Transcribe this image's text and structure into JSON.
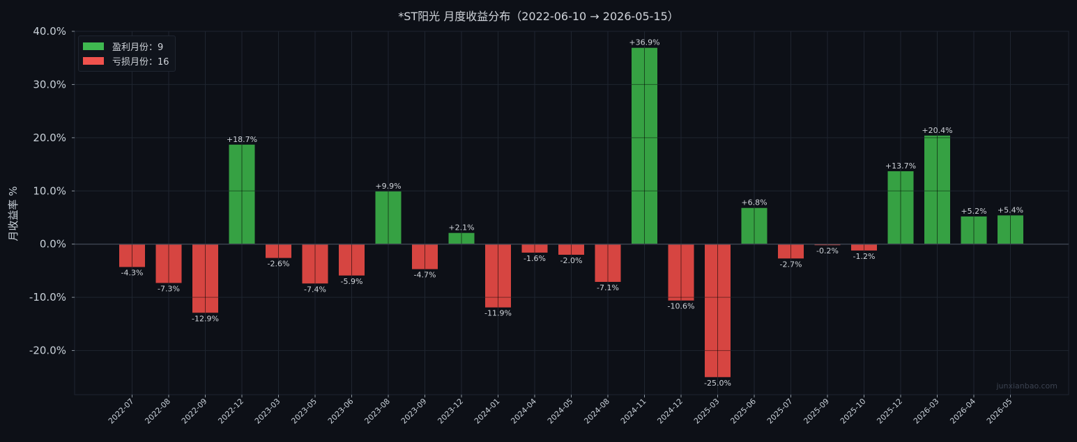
{
  "chart_data": {
    "type": "bar",
    "title": "*ST阳光 月度收益分布（2022-06-10 → 2026-05-15）",
    "ylabel": "月收益率 %",
    "xlabel": "",
    "ylim": [
      -28.3,
      40.0
    ],
    "yticks": [
      -20,
      -10,
      0,
      10,
      20,
      30,
      40
    ],
    "ytick_labels": [
      "-20.0%",
      "-10.0%",
      "0.0%",
      "10.0%",
      "20.0%",
      "30.0%",
      "40.0%"
    ],
    "grid": true,
    "legend_position": "top-left",
    "categories": [
      "2022-07",
      "2022-08",
      "2022-09",
      "2022-12",
      "2023-03",
      "2023-05",
      "2023-06",
      "2023-08",
      "2023-09",
      "2023-12",
      "2024-01",
      "2024-04",
      "2024-05",
      "2024-08",
      "2024-11",
      "2024-12",
      "2025-03",
      "2025-06",
      "2025-07",
      "2025-09",
      "2025-10",
      "2025-12",
      "2026-03",
      "2026-04",
      "2026-05"
    ],
    "values": [
      -4.3,
      -7.3,
      -12.9,
      18.7,
      -2.6,
      -7.4,
      -5.9,
      9.9,
      -4.7,
      2.1,
      -11.9,
      -1.6,
      -2.0,
      -7.1,
      36.9,
      -10.6,
      -25.0,
      6.8,
      -2.7,
      -0.2,
      -1.2,
      13.7,
      20.4,
      5.2,
      5.4
    ],
    "data_labels": [
      "-4.3%",
      "-7.3%",
      "-12.9%",
      "+18.7%",
      "-2.6%",
      "-7.4%",
      "-5.9%",
      "+9.9%",
      "-4.7%",
      "+2.1%",
      "-11.9%",
      "-1.6%",
      "-2.0%",
      "-7.1%",
      "+36.9%",
      "-10.6%",
      "-25.0%",
      "+6.8%",
      "-2.7%",
      "-0.2%",
      "-1.2%",
      "+13.7%",
      "+20.4%",
      "+5.2%",
      "+5.4%"
    ],
    "legend": [
      {
        "label": "盈利月份：9",
        "color": "#3fb950"
      },
      {
        "label": "亏损月份：16",
        "color": "#f0524d"
      }
    ]
  },
  "colors": {
    "background": "#0d1017",
    "grid": "#1f2530",
    "positive_bar": "#36a143",
    "negative_bar": "#d64541",
    "text": "#c9d1d9"
  },
  "watermark": "junxianbao.com"
}
